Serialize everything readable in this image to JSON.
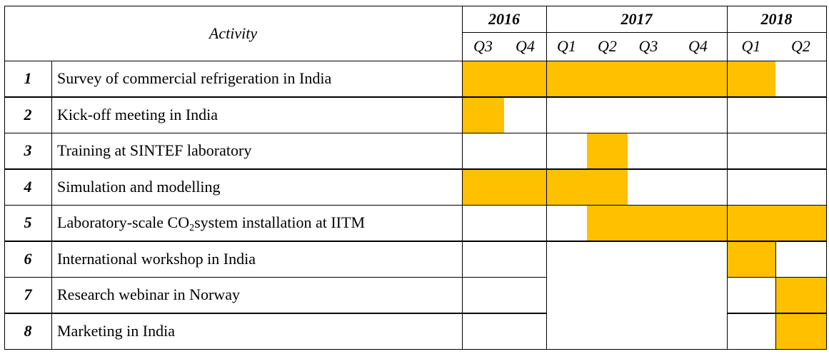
{
  "header": {
    "activity_label": "Activity",
    "years": [
      {
        "label": "2016",
        "quarters": [
          "Q3",
          "Q4"
        ]
      },
      {
        "label": "2017",
        "quarters": [
          "Q1",
          "Q2",
          "Q3",
          "Q4"
        ]
      },
      {
        "label": "2018",
        "quarters": [
          "Q1",
          "Q2"
        ]
      }
    ]
  },
  "rows": [
    {
      "num": "1",
      "label": "Survey of commercial refrigeration in India",
      "active": [
        1,
        1,
        1,
        1,
        1,
        1,
        1,
        0
      ]
    },
    {
      "num": "2",
      "label": "Kick-off meeting in India",
      "active": [
        1,
        0,
        0,
        0,
        0,
        0,
        0,
        0
      ]
    },
    {
      "num": "3",
      "label": "Training at SINTEF laboratory",
      "active": [
        0,
        0,
        0,
        1,
        0,
        0,
        0,
        0
      ]
    },
    {
      "num": "4",
      "label": "Simulation and modelling",
      "active": [
        1,
        1,
        1,
        1,
        0,
        0,
        0,
        0
      ]
    },
    {
      "num": "5",
      "label_parts": [
        "Laboratory-scale CO",
        "2",
        "system installation at IITM"
      ],
      "active": [
        0,
        0,
        0,
        1,
        1,
        1,
        1,
        1
      ]
    },
    {
      "num": "6",
      "label": "International workshop in India",
      "active": [
        0,
        0,
        0,
        0,
        0,
        0,
        1,
        0
      ]
    },
    {
      "num": "7",
      "label": "Research webinar in Norway",
      "active": [
        0,
        0,
        0,
        0,
        0,
        0,
        0,
        1
      ]
    },
    {
      "num": "8",
      "label": "Marketing in India",
      "active": [
        0,
        0,
        0,
        0,
        0,
        0,
        0,
        1
      ]
    }
  ],
  "colors": {
    "bar": "#FFC000",
    "grid": "#000000"
  }
}
